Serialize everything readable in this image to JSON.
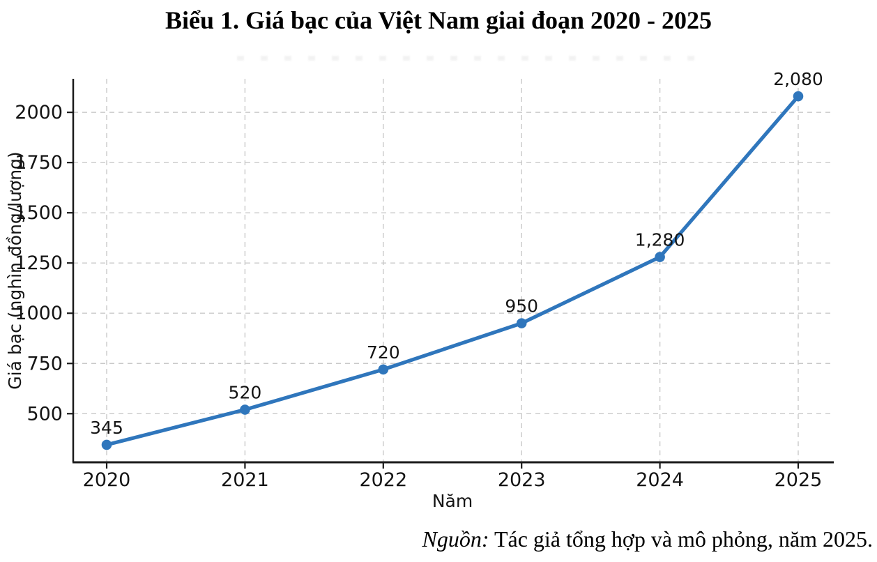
{
  "chart_data": {
    "type": "line",
    "title": "Biểu 1. Giá bạc của Việt Nam giai đoạn 2020 - 2025",
    "x": [
      2020,
      2021,
      2022,
      2023,
      2024,
      2025
    ],
    "series": [
      {
        "name": "Giá bạc",
        "values": [
          345,
          520,
          720,
          950,
          1280,
          2080
        ],
        "point_labels": [
          "345",
          "520",
          "720",
          "950",
          "1,280",
          "2,080"
        ]
      }
    ],
    "xlabel": "Năm",
    "ylabel": "Giá bạc (nghìn đồng/lượng)",
    "xticks": [
      2020,
      2021,
      2022,
      2023,
      2024,
      2025
    ],
    "yticks": [
      500,
      750,
      1000,
      1250,
      1500,
      1750,
      2000
    ],
    "xlim": [
      2019.758,
      2025.242
    ],
    "ylim": [
      258,
      2167
    ],
    "grid": true,
    "grid_style": "dashed",
    "legend": "none",
    "colors": {
      "line": "#2F76BC",
      "marker": "#2F76BC",
      "grid": "#c9c9c9",
      "spine": "#1a1a1a",
      "text": "#141414"
    }
  },
  "source": {
    "label": "Nguồn:",
    "text": " Tác giả tổng hợp và mô phỏng, năm 2025."
  }
}
